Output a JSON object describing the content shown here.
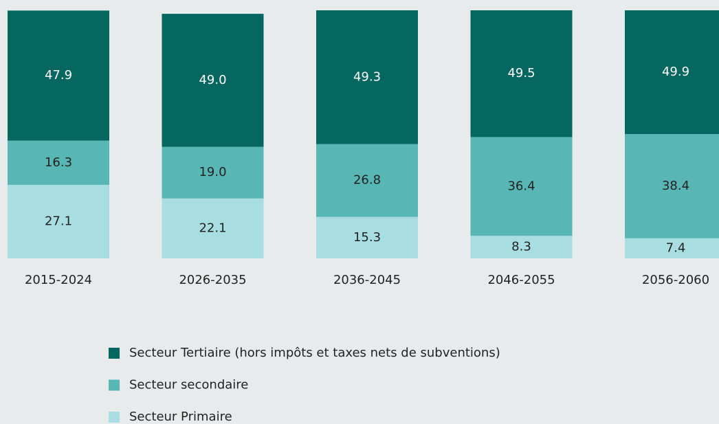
{
  "chart_data": {
    "type": "stacked_bar",
    "categories": [
      "2015-2024",
      "2026-2035",
      "2036-2045",
      "2046-2055",
      "2056-2060"
    ],
    "series": [
      {
        "name": "Secteur Primaire",
        "color": "#a8dde1",
        "values": [
          27.1,
          22.1,
          15.3,
          8.3,
          7.4
        ],
        "value_labels": [
          "27.1",
          "22.1",
          "15.3",
          "8.3",
          "7.4"
        ]
      },
      {
        "name": "Secteur secondaire",
        "color": "#58b6b4",
        "values": [
          16.3,
          19.0,
          26.8,
          36.4,
          38.4
        ],
        "value_labels": [
          "16.3",
          "19.0",
          "26.8",
          "36.4",
          "38.4"
        ]
      },
      {
        "name": "Secteur Tertiaire (hors impôts et taxes nets de subventions)",
        "color": "#05675f",
        "values": [
          47.9,
          49.0,
          49.3,
          49.5,
          49.9
        ],
        "value_labels": [
          "47.9",
          "49.0",
          "49.3",
          "49.5",
          "49.9"
        ]
      }
    ],
    "legend": "bottom"
  }
}
